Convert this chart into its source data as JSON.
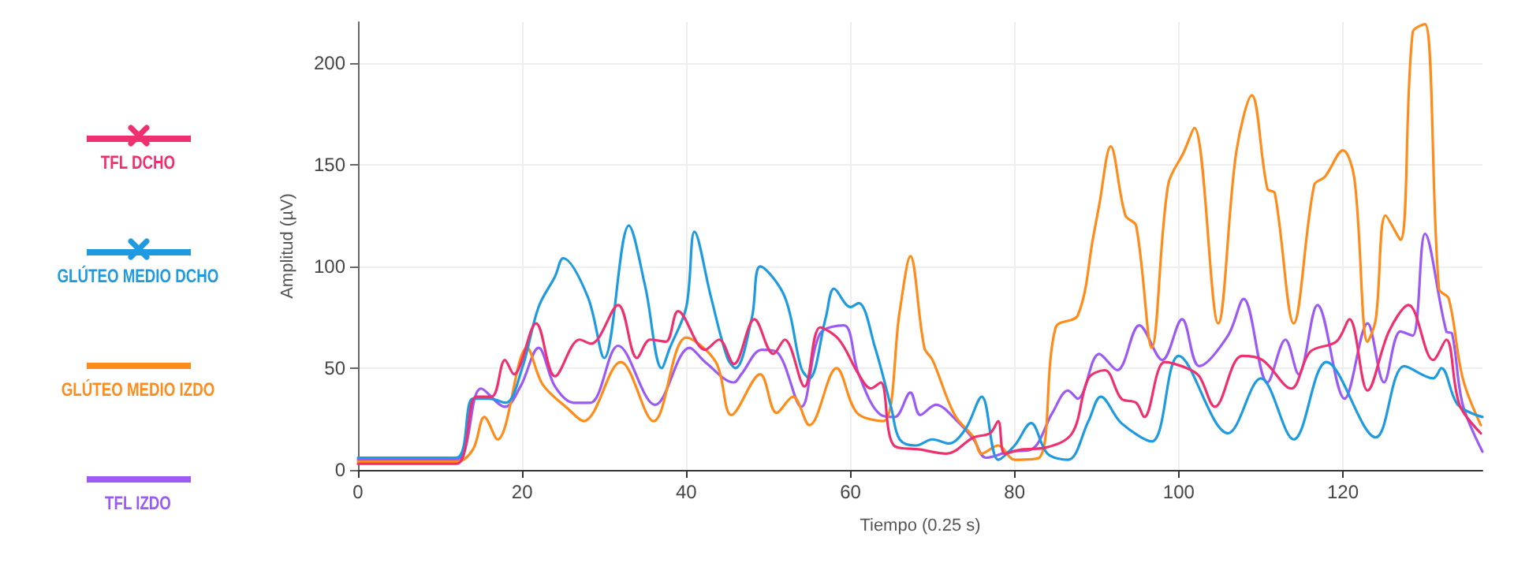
{
  "chart_data": {
    "type": "line",
    "xlabel": "Tiempo (0.25 s)",
    "ylabel": "Amplitud (µV)",
    "xlim": [
      0,
      137
    ],
    "xticks": [
      0,
      20,
      40,
      60,
      80,
      100,
      120
    ],
    "ylim": [
      0,
      220
    ],
    "yticks": [
      0,
      50,
      100,
      150,
      200
    ],
    "grid": true,
    "legend": "left",
    "marker": "none",
    "line_style": "solid",
    "series": [
      {
        "name": "TFL DCHO",
        "color": "#f0306e",
        "x": [
          0,
          6,
          12,
          14.4,
          16.3,
          17.9,
          19,
          21.7,
          24,
          27,
          28.4,
          31.7,
          34,
          35.6,
          37.5,
          39,
          42.3,
          44,
          45.8,
          48.3,
          50.6,
          52,
          54.4,
          56.3,
          58.6,
          61,
          62.5,
          63.7,
          65.3,
          68.5,
          71.7,
          75,
          77,
          78,
          78.8,
          80.8,
          83.8,
          87,
          89,
          91,
          93,
          94.8,
          95.8,
          98.3,
          101,
          102.5,
          104.4,
          107.7,
          110.2,
          113.7,
          116,
          119.2,
          120.8,
          123,
          125.6,
          128,
          131,
          132.6,
          134.2,
          136.8
        ],
        "values": [
          3,
          3,
          3,
          36,
          36,
          54,
          47,
          72,
          46,
          64,
          62,
          81,
          55,
          64,
          63,
          78,
          59,
          64,
          52,
          74,
          57,
          64,
          41,
          70,
          64,
          47,
          40,
          43,
          12,
          10,
          8,
          16,
          18,
          24,
          8,
          10,
          11,
          18,
          45,
          49,
          35,
          33,
          26,
          53,
          50,
          46,
          31,
          56,
          54,
          40,
          58,
          63,
          74,
          39,
          68,
          81,
          54,
          64,
          32,
          18
        ]
      },
      {
        "name": "GLÚTEO MEDIO DCHO",
        "color": "#1e9be0",
        "x": [
          0,
          6,
          12,
          14,
          16,
          18,
          20,
          22,
          24,
          25,
          28,
          30,
          33,
          35,
          37,
          38,
          40,
          41,
          43,
          45,
          46,
          48,
          49,
          52,
          54,
          55,
          57,
          58,
          60,
          61,
          63,
          65,
          66,
          68,
          70,
          72,
          74,
          76,
          78,
          80,
          82,
          84,
          86.5,
          89,
          90.5,
          93,
          96.7,
          100,
          106,
          110,
          114,
          118,
          124,
          127.5,
          131,
          132,
          134,
          137
        ],
        "values": [
          6,
          6,
          6,
          35,
          35,
          33,
          50,
          80,
          95,
          104,
          85,
          55,
          120,
          90,
          50,
          60,
          80,
          117,
          85,
          55,
          50,
          75,
          100,
          85,
          50,
          45,
          75,
          89,
          80,
          82,
          60,
          30,
          15,
          12,
          15,
          13,
          20,
          36,
          5,
          12,
          23,
          8,
          5,
          24,
          36,
          23,
          14,
          56,
          18,
          45,
          15,
          53,
          16,
          51,
          45,
          50,
          32,
          26
        ]
      },
      {
        "name": "GLÚTEO MEDIO IZDO",
        "color": "#ff8c1a",
        "x": [
          0,
          6,
          12,
          14,
          15.4,
          17,
          20.6,
          22.5,
          25.6,
          27.5,
          32,
          36,
          40,
          43.6,
          45.5,
          49,
          51,
          53,
          55,
          58.3,
          60.8,
          64,
          66,
          67.3,
          69,
          70,
          72.7,
          75,
          76,
          78,
          80,
          83,
          85,
          87.7,
          89.6,
          90.3,
          91.7,
          93.5,
          94.8,
          96.7,
          98.7,
          100.6,
          101.9,
          104.8,
          107,
          108.9,
          110.8,
          111.7,
          114,
          116.5,
          117.8,
          120,
          121.4,
          123,
          124,
          125.2,
          127,
          128.5,
          130,
          131.7,
          132.9,
          134.6,
          136.8
        ],
        "values": [
          4,
          4,
          4,
          10,
          26,
          15,
          60,
          42,
          30,
          24,
          53,
          24,
          65,
          53,
          27,
          47,
          28,
          36,
          22,
          50,
          28,
          24,
          78,
          105,
          60,
          54,
          27,
          16,
          8,
          12,
          5,
          6,
          70,
          76,
          115,
          130,
          159,
          125,
          120,
          60,
          140,
          156,
          168,
          72,
          156,
          184,
          138,
          136,
          72,
          140,
          144,
          157,
          143,
          63,
          74,
          125,
          113,
          215,
          219,
          89,
          84,
          45,
          22
        ]
      },
      {
        "name": "TFL IZDO",
        "color": "#9b59f5",
        "x": [
          0,
          6,
          12,
          15,
          17.9,
          19.8,
          22,
          24,
          26.3,
          28.3,
          31.7,
          36.2,
          40.4,
          42.3,
          45.8,
          46.7,
          49.2,
          51,
          54,
          56.3,
          59.2,
          61,
          63.7,
          65.4,
          67.3,
          68.5,
          70.4,
          73,
          75,
          76.5,
          79.4,
          82,
          84.6,
          86.5,
          87.7,
          90.3,
          92.5,
          95.2,
          98,
          100.4,
          102.5,
          106,
          107.9,
          110.8,
          113,
          114.6,
          116.9,
          120.2,
          123,
          125,
          127,
          128.5,
          130,
          132.6,
          133.3,
          134.6,
          137
        ],
        "values": [
          5,
          5,
          5,
          40,
          31,
          41,
          60,
          41,
          33,
          33,
          61,
          32,
          60,
          53,
          43,
          47,
          59,
          58,
          31,
          67,
          71,
          47,
          27,
          26,
          38,
          27,
          32,
          24,
          15,
          6,
          9,
          10,
          28,
          39,
          35,
          57,
          49,
          71,
          54,
          74,
          51,
          66,
          84,
          43,
          64,
          47,
          81,
          35,
          72,
          43,
          68,
          66,
          116,
          68,
          67,
          32,
          9
        ]
      }
    ]
  }
}
